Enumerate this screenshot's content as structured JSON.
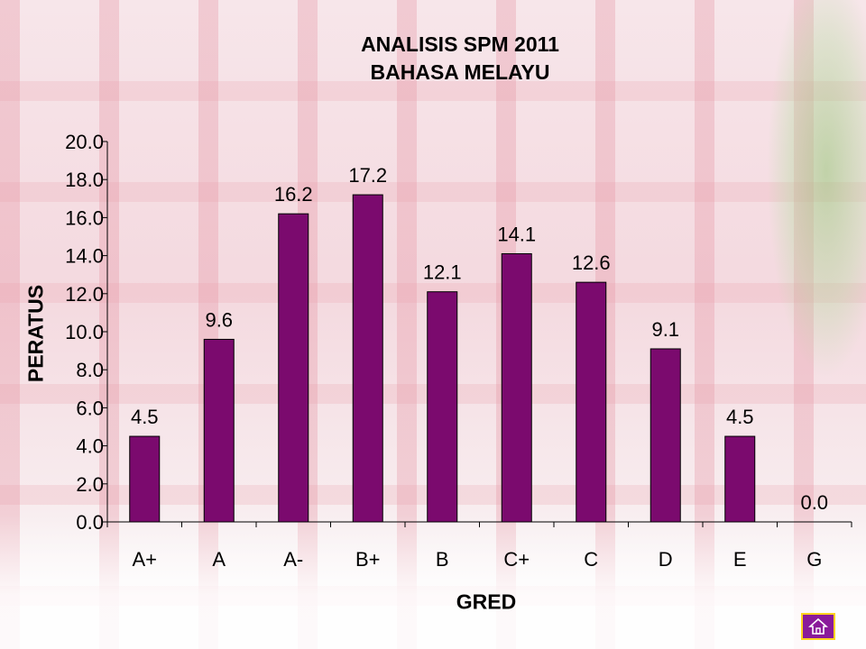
{
  "chart_data": {
    "type": "bar",
    "title": "ANALISIS SPM 2011",
    "subtitle": "BAHASA MELAYU",
    "xlabel": "GRED",
    "ylabel": "PERATUS",
    "categories": [
      "A+",
      "A",
      "A-",
      "B+",
      "B",
      "C+",
      "C",
      "D",
      "E",
      "G"
    ],
    "values": [
      4.5,
      9.6,
      16.2,
      17.2,
      12.1,
      14.1,
      12.6,
      9.1,
      4.5,
      0.0
    ],
    "data_labels": [
      "4.5",
      "9.6",
      "16.2",
      "17.2",
      "12.1",
      "14.1",
      "12.6",
      "9.1",
      "4.5",
      "0.0"
    ],
    "yticks": [
      "0.0",
      "2.0",
      "4.0",
      "6.0",
      "8.0",
      "10.0",
      "12.0",
      "14.0",
      "16.0",
      "18.0",
      "20.0"
    ],
    "ylim": [
      0,
      20
    ],
    "grid": false,
    "legend": "none",
    "bar_color": "#7b0a6e"
  },
  "nav": {
    "home_icon": "home-icon",
    "home_color": "#8a1a9a",
    "home_border": "#ffd21f"
  }
}
